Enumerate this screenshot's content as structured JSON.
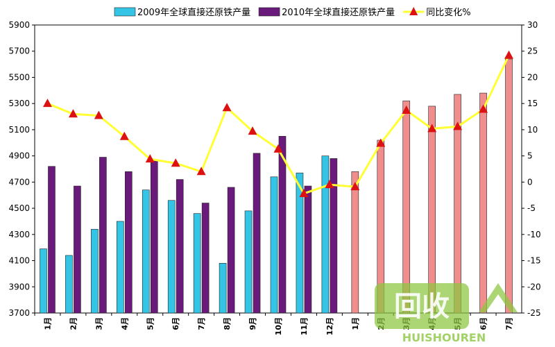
{
  "chart_data": {
    "type": "bar",
    "categories": [
      "1月",
      "2月",
      "3月",
      "4月",
      "5月",
      "6月",
      "7月",
      "8月",
      "9月",
      "10月",
      "11月",
      "12月",
      "1月",
      "2月",
      "3月",
      "4月",
      "5月",
      "6月",
      "7月"
    ],
    "series": [
      {
        "name": "2009年全球直接还原铁产量",
        "type": "bar",
        "axis": "left",
        "color": "#33c4e6",
        "values": [
          4190,
          4140,
          4340,
          4400,
          4640,
          4560,
          4460,
          4080,
          4480,
          4740,
          4770,
          4900,
          null,
          null,
          null,
          null,
          null,
          null,
          null
        ]
      },
      {
        "name": "2010年全球直接还原铁产量",
        "type": "bar",
        "axis": "left",
        "color": "#6a1a7a",
        "values": [
          4820,
          4670,
          4890,
          4780,
          4870,
          4720,
          4540,
          4660,
          4920,
          5050,
          4670,
          4880,
          null,
          null,
          null,
          null,
          null,
          null,
          null
        ]
      },
      {
        "name": "",
        "type": "bar",
        "axis": "left",
        "color": "#f08e8e",
        "values": [
          null,
          null,
          null,
          null,
          null,
          null,
          null,
          null,
          null,
          null,
          null,
          null,
          4780,
          5020,
          5320,
          5280,
          5370,
          5380,
          5640
        ]
      },
      {
        "name": "同比变化%",
        "type": "line",
        "axis": "right",
        "color": "#ffff33",
        "marker_color": "#dd1111",
        "values": [
          15,
          13,
          12.7,
          8.7,
          4.4,
          3.6,
          2,
          14.2,
          9.7,
          6.3,
          -2.2,
          -0.5,
          -0.9,
          7.4,
          13.7,
          10.2,
          10.6,
          13.9,
          24.2
        ]
      }
    ],
    "ylim_left": [
      3700,
      5900
    ],
    "yticks_left": [
      3700,
      3900,
      4100,
      4300,
      4500,
      4700,
      4900,
      5100,
      5300,
      5500,
      5700,
      5900
    ],
    "ylim_right": [
      -25,
      30
    ],
    "yticks_right": [
      -25,
      -20,
      -15,
      -10,
      -5,
      0,
      5,
      10,
      15,
      20,
      25,
      30
    ],
    "title": "",
    "xlabel": "",
    "ylabel": "",
    "legend": "top",
    "grid": false
  },
  "watermark": {
    "main": "回收",
    "sub": "HUISHOUREN"
  }
}
